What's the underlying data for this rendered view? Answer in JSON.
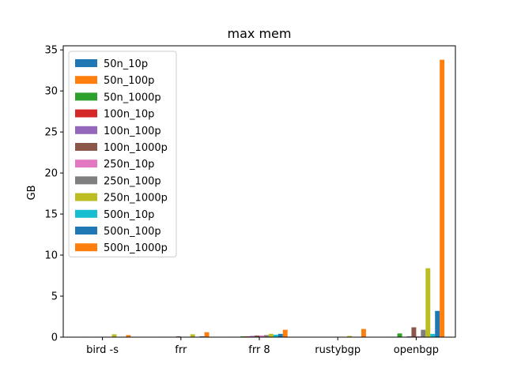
{
  "chart_data": {
    "type": "bar",
    "title": "max mem",
    "xlabel": "",
    "ylabel": "GB",
    "ylim": [
      0,
      35.5
    ],
    "yticks": [
      0,
      5,
      10,
      15,
      20,
      25,
      30,
      35
    ],
    "grid": false,
    "legend_position": "top-left",
    "categories": [
      "bird -s",
      "frr",
      "frr 8",
      "rustybgp",
      "openbgp"
    ],
    "series": [
      {
        "name": "50n_10p",
        "color": "#1f77b4",
        "values": [
          0.02,
          0.03,
          0.05,
          0.02,
          0.05
        ]
      },
      {
        "name": "50n_100p",
        "color": "#ff7f0e",
        "values": [
          0.02,
          0.03,
          0.05,
          0.02,
          0.05
        ]
      },
      {
        "name": "50n_1000p",
        "color": "#2ca02c",
        "values": [
          0.05,
          0.05,
          0.1,
          0.03,
          0.45
        ]
      },
      {
        "name": "100n_10p",
        "color": "#d62728",
        "values": [
          0.02,
          0.03,
          0.1,
          0.02,
          0.05
        ]
      },
      {
        "name": "100n_100p",
        "color": "#9467bd",
        "values": [
          0.03,
          0.03,
          0.15,
          0.02,
          0.1
        ]
      },
      {
        "name": "100n_1000p",
        "color": "#8c564b",
        "values": [
          0.05,
          0.1,
          0.2,
          0.03,
          1.2
        ]
      },
      {
        "name": "250n_10p",
        "color": "#e377c2",
        "values": [
          0.03,
          0.03,
          0.2,
          0.02,
          0.1
        ]
      },
      {
        "name": "250n_100p",
        "color": "#7f7f7f",
        "values": [
          0.05,
          0.05,
          0.25,
          0.03,
          0.9
        ]
      },
      {
        "name": "250n_1000p",
        "color": "#bcbd22",
        "values": [
          0.35,
          0.35,
          0.4,
          0.15,
          8.4
        ]
      },
      {
        "name": "500n_10p",
        "color": "#17becf",
        "values": [
          0.03,
          0.05,
          0.3,
          0.03,
          0.4
        ]
      },
      {
        "name": "500n_100p",
        "color": "#1f77b4",
        "values": [
          0.05,
          0.1,
          0.4,
          0.05,
          3.2
        ]
      },
      {
        "name": "500n_1000p",
        "color": "#ff7f0e",
        "values": [
          0.25,
          0.6,
          0.9,
          1.0,
          33.8
        ]
      }
    ]
  }
}
